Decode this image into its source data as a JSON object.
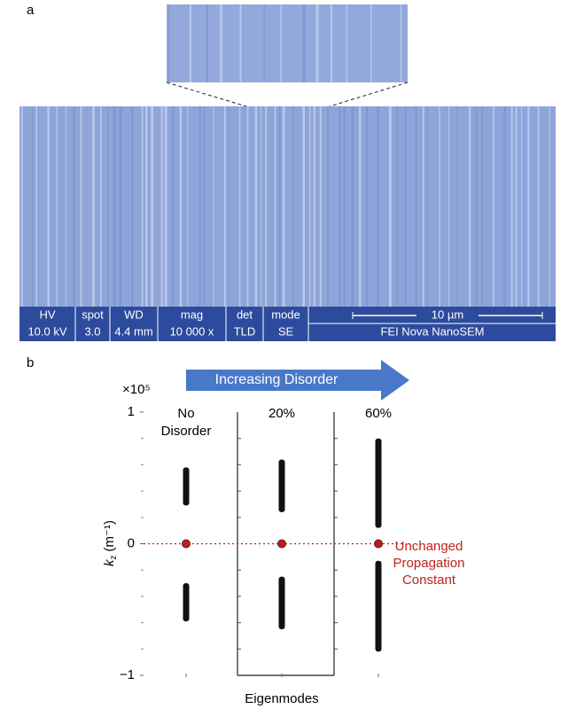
{
  "panel_a": {
    "label": "a",
    "info_bar": {
      "headers": [
        "HV",
        "spot",
        "WD",
        "mag",
        "det",
        "mode"
      ],
      "values": [
        "10.0 kV",
        "3.0",
        "4.4 mm",
        "10 000 x",
        "TLD",
        "SE"
      ],
      "scale_bar": "10 µm",
      "instrument": "FEI Nova NanoSEM"
    }
  },
  "chart_data": {
    "type": "range",
    "label": "b",
    "arrow_text": "Increasing Disorder",
    "y_multiplier": "×10⁵",
    "y_label": {
      "symbol": "k",
      "subscript": "z",
      "unit": "(m⁻¹)"
    },
    "x_label": "Eigenmodes",
    "categories": [
      "No Disorder",
      "20%",
      "60%"
    ],
    "ranges": [
      [
        [
          0.29,
          0.58
        ],
        [
          -0.59,
          -0.3
        ]
      ],
      [
        [
          0.24,
          0.64
        ],
        [
          -0.65,
          -0.25
        ]
      ],
      [
        [
          0.12,
          0.8
        ],
        [
          -0.82,
          -0.13
        ]
      ]
    ],
    "range_color": "#111111",
    "modes": [
      0,
      0,
      0
    ],
    "mode_color": "#b5211f",
    "reference_line": 0,
    "annotation": [
      "Unchanged",
      "Propagation",
      "Constant"
    ],
    "annotation_color": "#c0201c",
    "ylim": [
      -1,
      1
    ],
    "yticks": [
      {
        "value": -1,
        "label": "−1"
      },
      0,
      1
    ],
    "minor_yticks": [
      -0.8,
      -0.6,
      -0.4,
      -0.2,
      0.2,
      0.4,
      0.6,
      0.8
    ]
  }
}
